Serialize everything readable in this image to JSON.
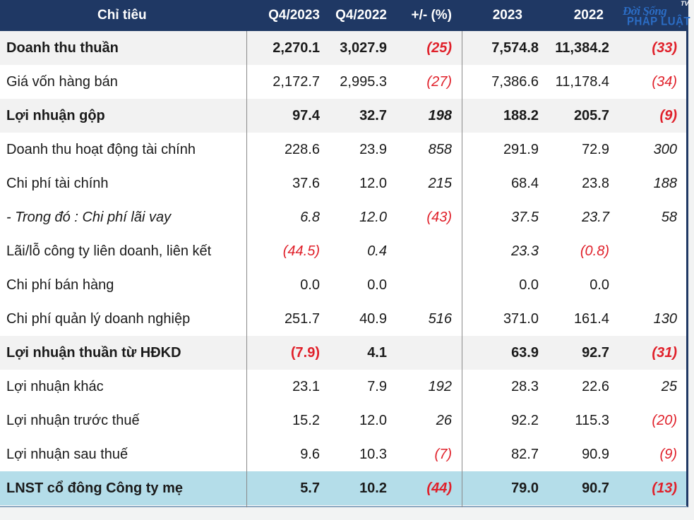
{
  "header": {
    "name": "Chỉ tiêu",
    "q4_2023": "Q4/2023",
    "q4_2022": "Q4/2022",
    "change": "+/- (%)",
    "y2023": "2023",
    "y2022": "2022"
  },
  "logo": {
    "line1": "Đời Sống",
    "line2": "PHÁP LUẬT",
    "tv": "TV"
  },
  "rows": [
    {
      "name": "Doanh thu thuần",
      "q4_2023": "2,270.1",
      "q4_2022": "3,027.9",
      "change": "(25)",
      "y2023": "7,574.8",
      "y2022": "11,384.2",
      "ychange": "(33)"
    },
    {
      "name": "Giá vốn hàng bán",
      "q4_2023": "2,172.7",
      "q4_2022": "2,995.3",
      "change": "(27)",
      "y2023": "7,386.6",
      "y2022": "11,178.4",
      "ychange": "(34)"
    },
    {
      "name": "Lợi nhuận gộp",
      "q4_2023": "97.4",
      "q4_2022": "32.7",
      "change": "198",
      "y2023": "188.2",
      "y2022": "205.7",
      "ychange": "(9)"
    },
    {
      "name": "Doanh thu hoạt động tài chính",
      "q4_2023": "228.6",
      "q4_2022": "23.9",
      "change": "858",
      "y2023": "291.9",
      "y2022": "72.9",
      "ychange": "300"
    },
    {
      "name": "Chi phí tài chính",
      "q4_2023": "37.6",
      "q4_2022": "12.0",
      "change": "215",
      "y2023": "68.4",
      "y2022": "23.8",
      "ychange": "188"
    },
    {
      "name": "- Trong đó : Chi phí lãi vay",
      "q4_2023": "6.8",
      "q4_2022": "12.0",
      "change": "(43)",
      "y2023": "37.5",
      "y2022": "23.7",
      "ychange": "58"
    },
    {
      "name": "Lãi/lỗ công ty liên doanh, liên kết",
      "q4_2023": "(44.5)",
      "q4_2022": "0.4",
      "change": "",
      "y2023": "23.3",
      "y2022": "(0.8)",
      "ychange": ""
    },
    {
      "name": "Chi phí bán hàng",
      "q4_2023": "0.0",
      "q4_2022": "0.0",
      "change": "",
      "y2023": "0.0",
      "y2022": "0.0",
      "ychange": ""
    },
    {
      "name": "Chi phí quản lý doanh nghiệp",
      "q4_2023": "251.7",
      "q4_2022": "40.9",
      "change": "516",
      "y2023": "371.0",
      "y2022": "161.4",
      "ychange": "130"
    },
    {
      "name": "Lợi nhuận thuần từ HĐKD",
      "q4_2023": "(7.9)",
      "q4_2022": "4.1",
      "change": "",
      "y2023": "63.9",
      "y2022": "92.7",
      "ychange": "(31)"
    },
    {
      "name": "Lợi nhuận khác",
      "q4_2023": "23.1",
      "q4_2022": "7.9",
      "change": "192",
      "y2023": "28.3",
      "y2022": "22.6",
      "ychange": "25"
    },
    {
      "name": "Lợi nhuận trước thuế",
      "q4_2023": "15.2",
      "q4_2022": "12.0",
      "change": "26",
      "y2023": "92.2",
      "y2022": "115.3",
      "ychange": "(20)"
    },
    {
      "name": "Lợi nhuận sau thuế",
      "q4_2023": "9.6",
      "q4_2022": "10.3",
      "change": "(7)",
      "y2023": "82.7",
      "y2022": "90.9",
      "ychange": "(9)"
    },
    {
      "name": "LNST cổ đông Công ty mẹ",
      "q4_2023": "5.7",
      "q4_2022": "10.2",
      "change": "(44)",
      "y2023": "79.0",
      "y2022": "90.7",
      "ychange": "(13)"
    }
  ],
  "colors": {
    "header_bg": "#1f3864",
    "negative": "#e0202a",
    "highlight_row": "#b4dde9",
    "bold_row": "#f2f2f2"
  }
}
